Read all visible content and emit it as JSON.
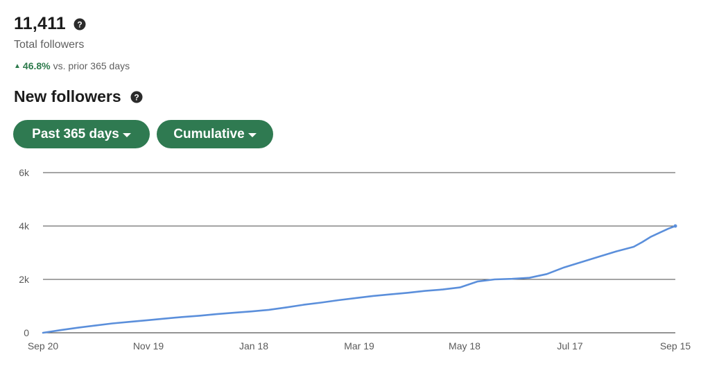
{
  "summary": {
    "total_value": "11,411",
    "total_label": "Total followers",
    "change_pct": "46.8%",
    "change_text": "vs. prior 365 days"
  },
  "section": {
    "title": "New followers"
  },
  "filters": {
    "range_label": "Past 365 days",
    "mode_label": "Cumulative"
  },
  "colors": {
    "accent_green": "#2f7a51",
    "positive_green": "#2c7a4b",
    "series_blue": "#5b8fdb"
  },
  "chart_data": {
    "type": "line",
    "title": "",
    "xlabel": "",
    "ylabel": "",
    "ylim": [
      0,
      6000
    ],
    "y_ticks": [
      0,
      2000,
      4000,
      6000
    ],
    "y_tick_labels": [
      "0",
      "2k",
      "4k",
      "6k"
    ],
    "x_tick_labels": [
      "Sep 20",
      "Nov 19",
      "Jan 18",
      "Mar 19",
      "May 18",
      "Jul 17",
      "Sep 15"
    ],
    "grid": true,
    "series": [
      {
        "name": "",
        "x": [
          0,
          10,
          20,
          30,
          40,
          50,
          60,
          70,
          80,
          90,
          100,
          110,
          120,
          130,
          140,
          150,
          160,
          170,
          180,
          190,
          200,
          210,
          220,
          230,
          240,
          250,
          260,
          270,
          280,
          290,
          300,
          310,
          320,
          330,
          340,
          345,
          350,
          355,
          360,
          364
        ],
        "y": [
          0,
          100,
          190,
          270,
          350,
          410,
          470,
          530,
          590,
          640,
          700,
          750,
          800,
          860,
          950,
          1050,
          1130,
          1220,
          1300,
          1380,
          1440,
          1500,
          1570,
          1620,
          1700,
          1920,
          2000,
          2020,
          2060,
          2200,
          2450,
          2650,
          2850,
          3050,
          3220,
          3400,
          3600,
          3750,
          3900,
          4000
        ]
      }
    ]
  }
}
